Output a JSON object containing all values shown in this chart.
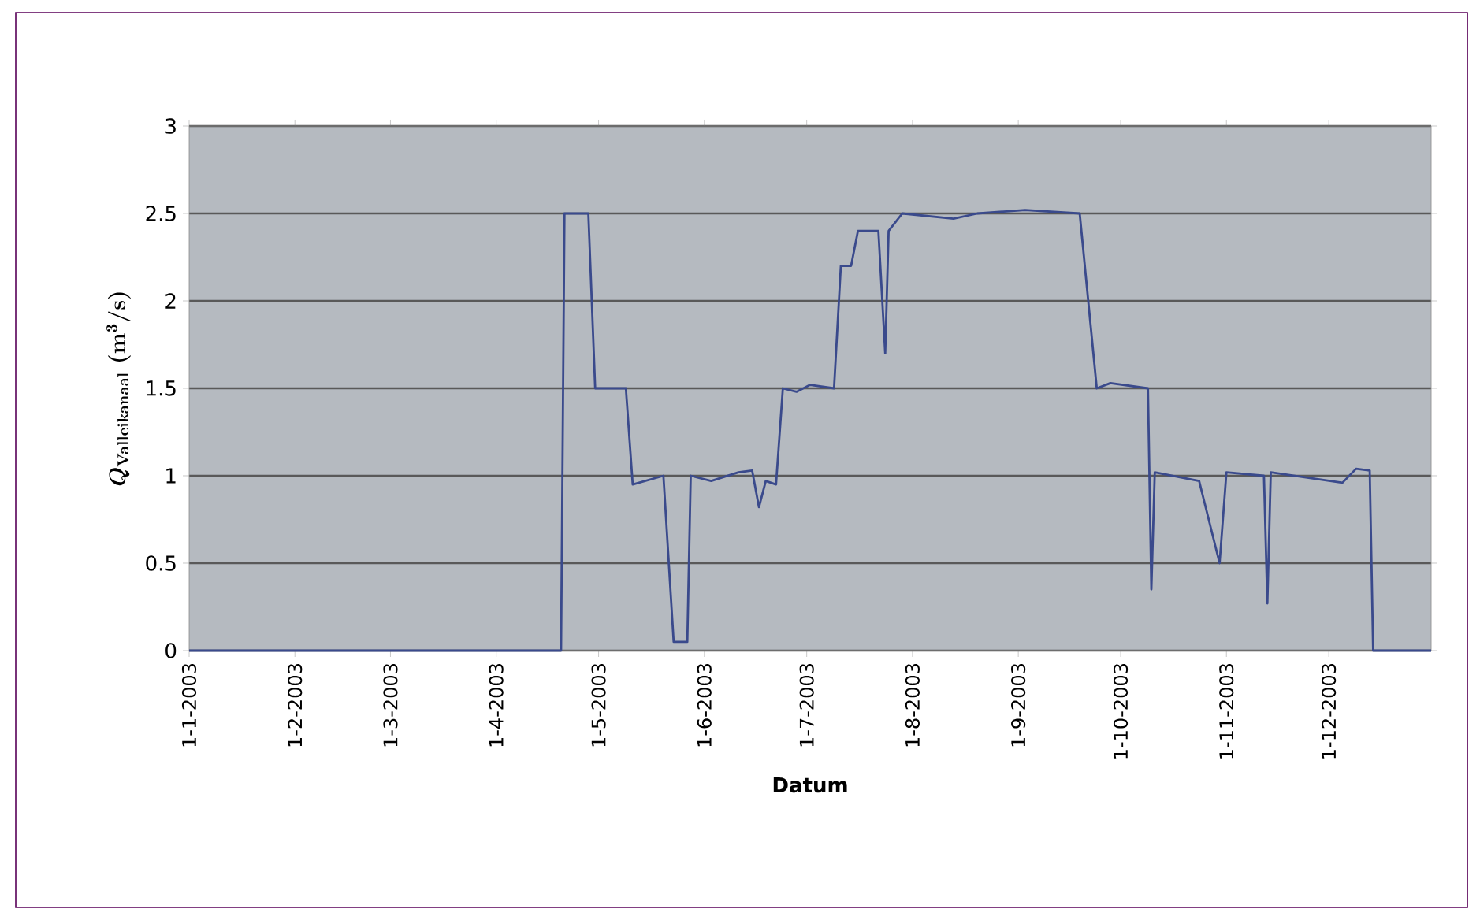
{
  "chart_data": {
    "type": "line",
    "xlabel": "Datum",
    "ylabel": "Q_{\\mathbf{Valleikanaal}}\\ (\\mathbf{m}^{3}\\mathbf{/s})",
    "xlim": [
      "2003-01-01",
      "2003-12-31"
    ],
    "xticks": [
      {
        "value": "2003-01-01",
        "label": "1-1-2003"
      },
      {
        "value": "2003-02-01",
        "label": "1-2-2003"
      },
      {
        "value": "2003-03-01",
        "label": "1-3-2003"
      },
      {
        "value": "2003-04-01",
        "label": "1-4-2003"
      },
      {
        "value": "2003-05-01",
        "label": "1-5-2003"
      },
      {
        "value": "2003-06-01",
        "label": "1-6-2003"
      },
      {
        "value": "2003-07-01",
        "label": "1-7-2003"
      },
      {
        "value": "2003-08-01",
        "label": "1-8-2003"
      },
      {
        "value": "2003-09-01",
        "label": "1-9-2003"
      },
      {
        "value": "2003-10-01",
        "label": "1-10-2003"
      },
      {
        "value": "2003-11-01",
        "label": "1-11-2003"
      },
      {
        "value": "2003-12-01",
        "label": "1-12-2003"
      }
    ],
    "ylim": [
      0,
      3
    ],
    "yticks": [
      0,
      {
        "value": 0.5,
        "label": "0.5"
      },
      1,
      {
        "value": 1.5,
        "label": "1.5"
      },
      2,
      {
        "value": 2.5,
        "label": "2.5"
      },
      3
    ],
    "grid": "y",
    "series": [
      {
        "color": "#3a4a8c",
        "x": [
          "2003-01-01",
          "2003-04-20",
          "2003-04-21",
          "2003-04-28",
          "2003-04-30",
          "2003-05-09",
          "2003-05-11",
          "2003-05-20",
          "2003-05-23",
          "2003-05-27",
          "2003-05-28",
          "2003-06-03",
          "2003-06-11",
          "2003-06-15",
          "2003-06-17",
          "2003-06-19",
          "2003-06-22",
          "2003-06-24",
          "2003-06-28",
          "2003-07-02",
          "2003-07-09",
          "2003-07-11",
          "2003-07-14",
          "2003-07-16",
          "2003-07-22",
          "2003-07-24",
          "2003-07-25",
          "2003-07-29",
          "2003-08-13",
          "2003-08-20",
          "2003-09-03",
          "2003-09-19",
          "2003-09-24",
          "2003-09-28",
          "2003-10-09",
          "2003-10-10",
          "2003-10-11",
          "2003-10-24",
          "2003-10-30",
          "2003-11-01",
          "2003-11-12",
          "2003-11-13",
          "2003-11-14",
          "2003-12-05",
          "2003-12-09",
          "2003-12-13",
          "2003-12-14",
          "2003-12-31"
        ],
        "values": [
          0,
          0,
          2.5,
          2.5,
          1.5,
          1.5,
          0.95,
          1.0,
          0.05,
          0.05,
          1.0,
          0.97,
          1.02,
          1.03,
          0.82,
          0.97,
          0.95,
          1.5,
          1.48,
          1.52,
          1.5,
          2.2,
          2.2,
          2.4,
          2.4,
          1.7,
          2.4,
          2.5,
          2.47,
          2.5,
          2.52,
          2.5,
          1.5,
          1.53,
          1.5,
          0.35,
          1.02,
          0.97,
          0.5,
          1.02,
          1.0,
          0.27,
          1.02,
          0.96,
          1.04,
          1.03,
          0,
          0
        ]
      }
    ]
  }
}
